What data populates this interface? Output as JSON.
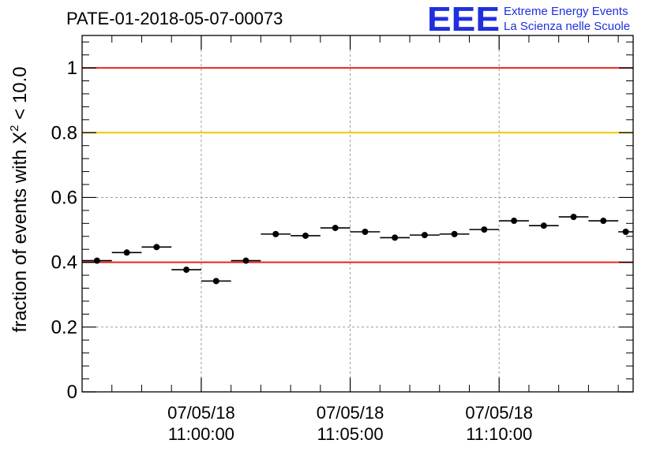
{
  "chart_data": {
    "type": "scatter",
    "title": "PATE-01-2018-05-07-00073",
    "ylabel": {
      "prefix": "fraction of events with ",
      "chi": "X",
      "sup": "2",
      "suffix": " < 10.0"
    },
    "ylim": [
      0,
      1.1
    ],
    "yticks": [
      {
        "value": 0,
        "label": "0"
      },
      {
        "value": 0.2,
        "label": "0.2"
      },
      {
        "value": 0.4,
        "label": "0.4"
      },
      {
        "value": 0.6,
        "label": "0.6"
      },
      {
        "value": 0.8,
        "label": "0.8"
      },
      {
        "value": 1,
        "label": "1"
      }
    ],
    "xlim": [
      "10:56:00",
      "11:14:30"
    ],
    "xticks": [
      {
        "time": "11:00:00",
        "date_label": "07/05/18",
        "time_label": "11:00:00"
      },
      {
        "time": "11:05:00",
        "date_label": "07/05/18",
        "time_label": "11:05:00"
      },
      {
        "time": "11:10:00",
        "date_label": "07/05/18",
        "time_label": "11:10:00"
      }
    ],
    "grid": true,
    "reference_lines": [
      {
        "y": 1.0,
        "color": "#e8251e"
      },
      {
        "y": 0.8,
        "color": "#f5c400"
      },
      {
        "y": 0.4,
        "color": "#e8251e"
      }
    ],
    "points": [
      {
        "x_start": "10:56:00",
        "x_end": "10:57:00",
        "y": 0.405
      },
      {
        "x_start": "10:57:00",
        "x_end": "10:58:00",
        "y": 0.43
      },
      {
        "x_start": "10:58:00",
        "x_end": "10:59:00",
        "y": 0.447
      },
      {
        "x_start": "10:59:00",
        "x_end": "11:00:00",
        "y": 0.377
      },
      {
        "x_start": "11:00:00",
        "x_end": "11:01:00",
        "y": 0.342
      },
      {
        "x_start": "11:01:00",
        "x_end": "11:02:00",
        "y": 0.405
      },
      {
        "x_start": "11:02:00",
        "x_end": "11:03:00",
        "y": 0.487
      },
      {
        "x_start": "11:03:00",
        "x_end": "11:04:00",
        "y": 0.482
      },
      {
        "x_start": "11:04:00",
        "x_end": "11:05:00",
        "y": 0.506
      },
      {
        "x_start": "11:05:00",
        "x_end": "11:06:00",
        "y": 0.494
      },
      {
        "x_start": "11:06:00",
        "x_end": "11:07:00",
        "y": 0.476
      },
      {
        "x_start": "11:07:00",
        "x_end": "11:08:00",
        "y": 0.484
      },
      {
        "x_start": "11:08:00",
        "x_end": "11:09:00",
        "y": 0.487
      },
      {
        "x_start": "11:09:00",
        "x_end": "11:10:00",
        "y": 0.501
      },
      {
        "x_start": "11:10:00",
        "x_end": "11:11:00",
        "y": 0.528
      },
      {
        "x_start": "11:11:00",
        "x_end": "11:12:00",
        "y": 0.513
      },
      {
        "x_start": "11:12:00",
        "x_end": "11:13:00",
        "y": 0.54
      },
      {
        "x_start": "11:13:00",
        "x_end": "11:14:00",
        "y": 0.528
      },
      {
        "x_start": "11:14:00",
        "x_end": "11:15:00",
        "y": 0.494
      }
    ],
    "marker_color": "#000000"
  },
  "logo": {
    "mark": "EEE",
    "line1": "Extreme Energy Events",
    "line2": "La Scienza nelle Scuole",
    "color": "#1f2fe0"
  }
}
